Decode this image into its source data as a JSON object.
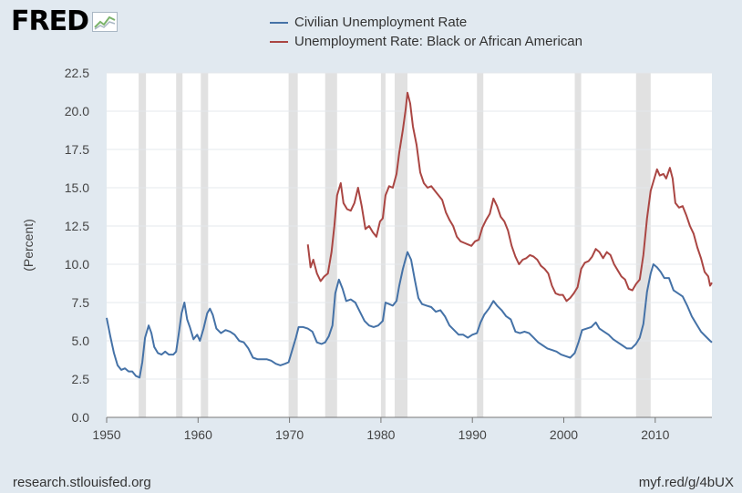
{
  "branding": {
    "logo_text": "FRED",
    "logo_icon": "chart-line-icon"
  },
  "footer": {
    "source_url": "research.stlouisfed.org",
    "short_url": "myf.red/g/4bUX"
  },
  "chart_data": {
    "type": "line",
    "title": "",
    "xlabel": "",
    "ylabel": "(Percent)",
    "xlim": [
      1950,
      2016.2
    ],
    "ylim": [
      0,
      22.5
    ],
    "yticks": [
      "0.0",
      "2.5",
      "5.0",
      "7.5",
      "10.0",
      "12.5",
      "15.0",
      "17.5",
      "20.0",
      "22.5"
    ],
    "xticks": [
      "1950",
      "1960",
      "1970",
      "1980",
      "1990",
      "2000",
      "2010"
    ],
    "grid": "horizontal",
    "legend_position": "top",
    "recessions": [
      [
        1953.5,
        1954.3
      ],
      [
        1957.6,
        1958.3
      ],
      [
        1960.3,
        1961.1
      ],
      [
        1969.9,
        1970.9
      ],
      [
        1973.9,
        1975.2
      ],
      [
        1980.0,
        1980.5
      ],
      [
        1981.5,
        1982.9
      ],
      [
        1990.5,
        1991.2
      ],
      [
        2001.2,
        2001.9
      ],
      [
        2007.9,
        2009.5
      ]
    ],
    "series": [
      {
        "name": "Civilian Unemployment Rate",
        "color": "#4572a7",
        "points": [
          [
            1950,
            6.5
          ],
          [
            1950.4,
            5.3
          ],
          [
            1950.8,
            4.2
          ],
          [
            1951.2,
            3.4
          ],
          [
            1951.6,
            3.1
          ],
          [
            1952,
            3.2
          ],
          [
            1952.4,
            3.0
          ],
          [
            1952.8,
            3.0
          ],
          [
            1953.2,
            2.7
          ],
          [
            1953.6,
            2.6
          ],
          [
            1953.9,
            3.6
          ],
          [
            1954.2,
            5.2
          ],
          [
            1954.6,
            6.0
          ],
          [
            1954.9,
            5.5
          ],
          [
            1955.2,
            4.6
          ],
          [
            1955.6,
            4.2
          ],
          [
            1956,
            4.1
          ],
          [
            1956.4,
            4.3
          ],
          [
            1956.8,
            4.1
          ],
          [
            1957.3,
            4.1
          ],
          [
            1957.6,
            4.3
          ],
          [
            1957.9,
            5.5
          ],
          [
            1958.2,
            6.8
          ],
          [
            1958.5,
            7.5
          ],
          [
            1958.8,
            6.4
          ],
          [
            1959.1,
            5.9
          ],
          [
            1959.5,
            5.1
          ],
          [
            1959.9,
            5.4
          ],
          [
            1960.2,
            5.0
          ],
          [
            1960.6,
            5.8
          ],
          [
            1961.0,
            6.8
          ],
          [
            1961.3,
            7.1
          ],
          [
            1961.6,
            6.7
          ],
          [
            1962.0,
            5.8
          ],
          [
            1962.5,
            5.5
          ],
          [
            1963.0,
            5.7
          ],
          [
            1963.5,
            5.6
          ],
          [
            1964.0,
            5.4
          ],
          [
            1964.5,
            5.0
          ],
          [
            1965.0,
            4.9
          ],
          [
            1965.5,
            4.5
          ],
          [
            1966.0,
            3.9
          ],
          [
            1966.5,
            3.8
          ],
          [
            1967.0,
            3.8
          ],
          [
            1967.5,
            3.8
          ],
          [
            1968.0,
            3.7
          ],
          [
            1968.5,
            3.5
          ],
          [
            1969.0,
            3.4
          ],
          [
            1969.5,
            3.5
          ],
          [
            1969.9,
            3.6
          ],
          [
            1970.3,
            4.4
          ],
          [
            1970.7,
            5.2
          ],
          [
            1971.0,
            5.9
          ],
          [
            1971.5,
            5.9
          ],
          [
            1972.0,
            5.8
          ],
          [
            1972.5,
            5.6
          ],
          [
            1973.0,
            4.9
          ],
          [
            1973.5,
            4.8
          ],
          [
            1973.9,
            4.9
          ],
          [
            1974.3,
            5.3
          ],
          [
            1974.7,
            6.0
          ],
          [
            1975.0,
            8.1
          ],
          [
            1975.4,
            9.0
          ],
          [
            1975.8,
            8.4
          ],
          [
            1976.2,
            7.6
          ],
          [
            1976.7,
            7.7
          ],
          [
            1977.2,
            7.5
          ],
          [
            1977.7,
            6.9
          ],
          [
            1978.2,
            6.3
          ],
          [
            1978.7,
            6.0
          ],
          [
            1979.2,
            5.9
          ],
          [
            1979.7,
            6.0
          ],
          [
            1980.2,
            6.3
          ],
          [
            1980.5,
            7.5
          ],
          [
            1980.9,
            7.4
          ],
          [
            1981.3,
            7.3
          ],
          [
            1981.7,
            7.6
          ],
          [
            1982.0,
            8.6
          ],
          [
            1982.4,
            9.7
          ],
          [
            1982.9,
            10.8
          ],
          [
            1983.3,
            10.3
          ],
          [
            1983.7,
            9.0
          ],
          [
            1984.1,
            7.8
          ],
          [
            1984.5,
            7.4
          ],
          [
            1985.0,
            7.3
          ],
          [
            1985.5,
            7.2
          ],
          [
            1986.0,
            6.9
          ],
          [
            1986.5,
            7.0
          ],
          [
            1987.0,
            6.6
          ],
          [
            1987.5,
            6.0
          ],
          [
            1988.0,
            5.7
          ],
          [
            1988.5,
            5.4
          ],
          [
            1989.0,
            5.4
          ],
          [
            1989.5,
            5.2
          ],
          [
            1990.0,
            5.4
          ],
          [
            1990.5,
            5.5
          ],
          [
            1990.9,
            6.2
          ],
          [
            1991.3,
            6.7
          ],
          [
            1991.8,
            7.1
          ],
          [
            1992.3,
            7.6
          ],
          [
            1992.7,
            7.3
          ],
          [
            1993.2,
            7.0
          ],
          [
            1993.7,
            6.6
          ],
          [
            1994.2,
            6.4
          ],
          [
            1994.7,
            5.6
          ],
          [
            1995.2,
            5.5
          ],
          [
            1995.7,
            5.6
          ],
          [
            1996.2,
            5.5
          ],
          [
            1996.7,
            5.2
          ],
          [
            1997.2,
            4.9
          ],
          [
            1997.7,
            4.7
          ],
          [
            1998.2,
            4.5
          ],
          [
            1998.7,
            4.4
          ],
          [
            1999.2,
            4.3
          ],
          [
            1999.7,
            4.1
          ],
          [
            2000.2,
            4.0
          ],
          [
            2000.7,
            3.9
          ],
          [
            2001.2,
            4.2
          ],
          [
            2001.6,
            4.9
          ],
          [
            2002.0,
            5.7
          ],
          [
            2002.5,
            5.8
          ],
          [
            2003.0,
            5.9
          ],
          [
            2003.5,
            6.2
          ],
          [
            2003.9,
            5.8
          ],
          [
            2004.4,
            5.6
          ],
          [
            2004.9,
            5.4
          ],
          [
            2005.4,
            5.1
          ],
          [
            2005.9,
            4.9
          ],
          [
            2006.4,
            4.7
          ],
          [
            2006.9,
            4.5
          ],
          [
            2007.4,
            4.5
          ],
          [
            2007.9,
            4.8
          ],
          [
            2008.3,
            5.2
          ],
          [
            2008.7,
            6.1
          ],
          [
            2009.1,
            8.2
          ],
          [
            2009.5,
            9.4
          ],
          [
            2009.8,
            10.0
          ],
          [
            2010.2,
            9.8
          ],
          [
            2010.6,
            9.5
          ],
          [
            2011.0,
            9.1
          ],
          [
            2011.5,
            9.1
          ],
          [
            2012.0,
            8.3
          ],
          [
            2012.5,
            8.1
          ],
          [
            2013.0,
            7.9
          ],
          [
            2013.5,
            7.3
          ],
          [
            2014.0,
            6.6
          ],
          [
            2014.5,
            6.1
          ],
          [
            2015.0,
            5.6
          ],
          [
            2015.5,
            5.3
          ],
          [
            2016.0,
            5.0
          ],
          [
            2016.2,
            4.9
          ]
        ]
      },
      {
        "name": "Unemployment Rate: Black or African American",
        "color": "#aa4643",
        "points": [
          [
            1972.0,
            11.3
          ],
          [
            1972.3,
            9.8
          ],
          [
            1972.6,
            10.3
          ],
          [
            1973.0,
            9.4
          ],
          [
            1973.4,
            8.9
          ],
          [
            1973.8,
            9.2
          ],
          [
            1974.2,
            9.4
          ],
          [
            1974.6,
            10.8
          ],
          [
            1974.9,
            12.5
          ],
          [
            1975.2,
            14.5
          ],
          [
            1975.6,
            15.3
          ],
          [
            1975.9,
            14.0
          ],
          [
            1976.3,
            13.6
          ],
          [
            1976.7,
            13.5
          ],
          [
            1977.1,
            14.0
          ],
          [
            1977.5,
            15.0
          ],
          [
            1977.9,
            13.8
          ],
          [
            1978.3,
            12.3
          ],
          [
            1978.7,
            12.5
          ],
          [
            1979.1,
            12.1
          ],
          [
            1979.5,
            11.8
          ],
          [
            1979.9,
            12.8
          ],
          [
            1980.2,
            13.0
          ],
          [
            1980.5,
            14.5
          ],
          [
            1980.9,
            15.1
          ],
          [
            1981.3,
            15.0
          ],
          [
            1981.7,
            15.9
          ],
          [
            1982.0,
            17.3
          ],
          [
            1982.4,
            18.8
          ],
          [
            1982.7,
            20.1
          ],
          [
            1982.9,
            21.2
          ],
          [
            1983.2,
            20.5
          ],
          [
            1983.5,
            19.0
          ],
          [
            1983.9,
            17.8
          ],
          [
            1984.3,
            16.0
          ],
          [
            1984.7,
            15.3
          ],
          [
            1985.1,
            15.0
          ],
          [
            1985.5,
            15.1
          ],
          [
            1985.9,
            14.8
          ],
          [
            1986.3,
            14.5
          ],
          [
            1986.7,
            14.2
          ],
          [
            1987.1,
            13.4
          ],
          [
            1987.5,
            12.9
          ],
          [
            1987.9,
            12.5
          ],
          [
            1988.3,
            11.8
          ],
          [
            1988.7,
            11.5
          ],
          [
            1989.1,
            11.4
          ],
          [
            1989.5,
            11.3
          ],
          [
            1989.9,
            11.2
          ],
          [
            1990.3,
            11.5
          ],
          [
            1990.7,
            11.6
          ],
          [
            1991.1,
            12.4
          ],
          [
            1991.5,
            12.9
          ],
          [
            1991.9,
            13.3
          ],
          [
            1992.3,
            14.3
          ],
          [
            1992.7,
            13.8
          ],
          [
            1993.1,
            13.1
          ],
          [
            1993.5,
            12.8
          ],
          [
            1993.9,
            12.2
          ],
          [
            1994.3,
            11.2
          ],
          [
            1994.7,
            10.5
          ],
          [
            1995.1,
            10.0
          ],
          [
            1995.5,
            10.3
          ],
          [
            1995.9,
            10.4
          ],
          [
            1996.3,
            10.6
          ],
          [
            1996.7,
            10.5
          ],
          [
            1997.1,
            10.3
          ],
          [
            1997.5,
            9.9
          ],
          [
            1997.9,
            9.7
          ],
          [
            1998.3,
            9.4
          ],
          [
            1998.7,
            8.6
          ],
          [
            1999.1,
            8.1
          ],
          [
            1999.5,
            8.0
          ],
          [
            1999.9,
            8.0
          ],
          [
            2000.3,
            7.6
          ],
          [
            2000.7,
            7.8
          ],
          [
            2001.1,
            8.1
          ],
          [
            2001.5,
            8.5
          ],
          [
            2001.9,
            9.7
          ],
          [
            2002.3,
            10.1
          ],
          [
            2002.7,
            10.2
          ],
          [
            2003.1,
            10.5
          ],
          [
            2003.5,
            11.0
          ],
          [
            2003.9,
            10.8
          ],
          [
            2004.3,
            10.4
          ],
          [
            2004.7,
            10.8
          ],
          [
            2005.1,
            10.6
          ],
          [
            2005.5,
            10.0
          ],
          [
            2005.9,
            9.6
          ],
          [
            2006.3,
            9.2
          ],
          [
            2006.7,
            9.0
          ],
          [
            2007.1,
            8.4
          ],
          [
            2007.5,
            8.3
          ],
          [
            2007.9,
            8.7
          ],
          [
            2008.3,
            9.0
          ],
          [
            2008.7,
            10.6
          ],
          [
            2009.1,
            13.0
          ],
          [
            2009.5,
            14.8
          ],
          [
            2009.9,
            15.6
          ],
          [
            2010.2,
            16.2
          ],
          [
            2010.5,
            15.8
          ],
          [
            2010.9,
            15.9
          ],
          [
            2011.2,
            15.6
          ],
          [
            2011.6,
            16.3
          ],
          [
            2011.9,
            15.6
          ],
          [
            2012.2,
            14.0
          ],
          [
            2012.6,
            13.7
          ],
          [
            2013.0,
            13.8
          ],
          [
            2013.4,
            13.2
          ],
          [
            2013.8,
            12.5
          ],
          [
            2014.2,
            12.0
          ],
          [
            2014.6,
            11.1
          ],
          [
            2015.0,
            10.4
          ],
          [
            2015.4,
            9.5
          ],
          [
            2015.8,
            9.2
          ],
          [
            2016.0,
            8.6
          ],
          [
            2016.2,
            8.8
          ]
        ]
      }
    ]
  }
}
